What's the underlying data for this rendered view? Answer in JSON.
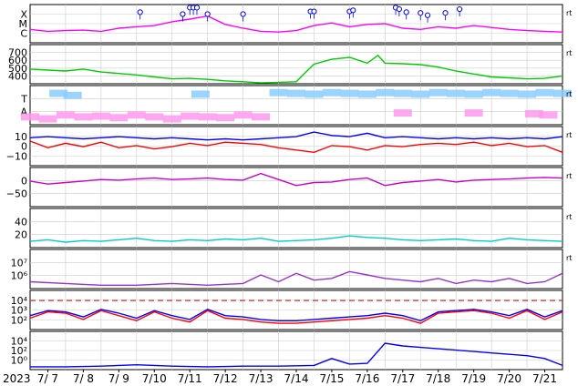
{
  "chart_data": [
    {
      "type": "line",
      "panel": "flare-class",
      "y_tick_labels": [
        "X",
        "M",
        "C"
      ],
      "series": [
        {
          "color": "#ff00ff",
          "x": [
            0,
            0.5,
            1,
            1.5,
            2,
            2.5,
            3,
            3.5,
            4,
            4.5,
            5,
            5.5,
            6,
            6.5,
            7,
            7.5,
            8,
            8.5,
            9,
            9.5,
            10,
            10.5,
            11,
            11.5,
            12,
            12.5,
            13,
            13.5,
            14,
            14.5,
            15
          ],
          "y": [
            0.35,
            0.3,
            0.32,
            0.33,
            0.3,
            0.38,
            0.42,
            0.45,
            0.55,
            0.62,
            0.7,
            0.48,
            0.38,
            0.3,
            0.28,
            0.32,
            0.45,
            0.52,
            0.42,
            0.48,
            0.5,
            0.38,
            0.35,
            0.42,
            0.38,
            0.45,
            0.4,
            0.35,
            0.32,
            0.3,
            0.28
          ]
        }
      ],
      "markers": {
        "color": "#0000ff",
        "x": [
          3.1,
          4.3,
          4.5,
          4.6,
          4.7,
          5.0,
          6.0,
          7.9,
          8.0,
          9.0,
          9.1,
          10.3,
          10.4,
          10.6,
          11.0,
          11.2,
          11.7,
          12.1
        ],
        "y": [
          0.8,
          0.75,
          0.92,
          0.92,
          0.92,
          0.75,
          0.75,
          0.82,
          0.82,
          0.82,
          0.85,
          0.92,
          0.88,
          0.8,
          0.78,
          0.72,
          0.78,
          0.88
        ]
      }
    },
    {
      "type": "line",
      "panel": "solar-wind-speed",
      "y_tick_labels": [
        "700",
        "600",
        "500",
        "400"
      ],
      "ylim": [
        350,
        750
      ],
      "series": [
        {
          "color": "#00cc00",
          "x": [
            0,
            0.5,
            1,
            1.5,
            2,
            2.5,
            3,
            3.5,
            4,
            4.5,
            5,
            5.5,
            6,
            6.5,
            7,
            7.5,
            7.8,
            8,
            8.5,
            9,
            9.5,
            9.8,
            10,
            10.5,
            11,
            11.5,
            12,
            12.5,
            13,
            13.5,
            14,
            14.5,
            15
          ],
          "y": [
            500,
            490,
            480,
            500,
            470,
            455,
            440,
            420,
            400,
            405,
            395,
            380,
            370,
            360,
            365,
            370,
            480,
            550,
            600,
            620,
            560,
            640,
            560,
            555,
            545,
            520,
            480,
            450,
            420,
            410,
            400,
            405,
            430
          ]
        }
      ]
    },
    {
      "type": "scatter",
      "panel": "imf-sector",
      "y_tick_labels": [
        "T",
        "A"
      ],
      "series": [
        {
          "color": "#ff99ee",
          "x": [
            0,
            0.5,
            1,
            1.5,
            2,
            2.5,
            3,
            3.5,
            4,
            4.5,
            5,
            5.5,
            6,
            6.5,
            10.5,
            12.5,
            14.2,
            14.6
          ],
          "y": [
            0.2,
            0.15,
            0.25,
            0.2,
            0.22,
            0.18,
            0.25,
            0.2,
            0.15,
            0.22,
            0.2,
            0.18,
            0.25,
            0.2,
            0.3,
            0.3,
            0.28,
            0.25
          ]
        },
        {
          "color": "#88ccff",
          "x": [
            0.8,
            1.2,
            4.8,
            7.0,
            7.5,
            8.0,
            8.5,
            9.0,
            9.5,
            10.0,
            10.5,
            11.0,
            11.5,
            12.0,
            12.5,
            13.0,
            13.5,
            14.0,
            14.5,
            15.0
          ],
          "y": [
            0.8,
            0.75,
            0.78,
            0.82,
            0.8,
            0.78,
            0.82,
            0.8,
            0.78,
            0.82,
            0.8,
            0.78,
            0.82,
            0.8,
            0.78,
            0.82,
            0.8,
            0.78,
            0.82,
            0.8
          ]
        }
      ]
    },
    {
      "type": "line",
      "panel": "imf-bz",
      "y_tick_labels": [
        "10",
        "0",
        "−10"
      ],
      "ylim": [
        -20,
        15
      ],
      "series": [
        {
          "color": "#0000ff",
          "x": [
            0,
            0.5,
            1,
            1.5,
            2,
            2.5,
            3,
            3.5,
            4,
            4.5,
            5,
            5.5,
            6,
            6.5,
            7,
            7.5,
            8,
            8.5,
            9,
            9.5,
            10,
            10.5,
            11,
            11.5,
            12,
            12.5,
            13,
            13.5,
            14,
            14.5,
            15
          ],
          "y": [
            5,
            6,
            5,
            4,
            5,
            6,
            5,
            4,
            5,
            4,
            3,
            4,
            3,
            4,
            5,
            6,
            10,
            7,
            6,
            9,
            5,
            6,
            5,
            4,
            5,
            4,
            5,
            4,
            5,
            4,
            6
          ]
        },
        {
          "color": "#ff0000",
          "x": [
            0,
            0.5,
            1,
            1.5,
            2,
            2.5,
            3,
            3.5,
            4,
            4.5,
            5,
            5.5,
            6,
            6.5,
            7,
            7.5,
            8,
            8.5,
            9,
            9.5,
            10,
            10.5,
            11,
            11.5,
            12,
            12.5,
            13,
            13.5,
            14,
            14.5,
            15
          ],
          "y": [
            2,
            -4,
            0,
            -3,
            1,
            -4,
            -2,
            -5,
            -3,
            0,
            -2,
            1,
            0,
            -1,
            -4,
            -6,
            -8,
            -2,
            -3,
            -6,
            -2,
            -3,
            -1,
            0,
            -1,
            1,
            -2,
            0,
            -3,
            -2,
            -8
          ]
        }
      ]
    },
    {
      "type": "line",
      "panel": "dst-index",
      "y_tick_labels": [
        "0",
        "−50"
      ],
      "ylim": [
        -100,
        30
      ],
      "series": [
        {
          "color": "#cc00cc",
          "x": [
            0,
            0.5,
            1,
            1.5,
            2,
            2.5,
            3,
            3.5,
            4,
            4.5,
            5,
            5.5,
            6,
            6.5,
            7,
            7.5,
            8,
            8.5,
            9,
            9.5,
            10,
            10.5,
            11,
            11.5,
            12,
            12.5,
            13,
            13.5,
            14,
            14.5,
            15
          ],
          "y": [
            -15,
            -25,
            -20,
            -15,
            -10,
            -12,
            -8,
            -5,
            -10,
            -8,
            -5,
            -10,
            -12,
            10,
            -10,
            -30,
            -20,
            -18,
            -10,
            -5,
            -30,
            -20,
            -15,
            -10,
            -18,
            -12,
            -10,
            -8,
            -5,
            -3,
            -5
          ]
        }
      ]
    },
    {
      "type": "line",
      "panel": "electron-flux-low",
      "y_tick_labels": [
        "40",
        "20"
      ],
      "ylim": [
        0,
        50
      ],
      "series": [
        {
          "color": "#00cccc",
          "x": [
            0,
            0.5,
            1,
            1.5,
            2,
            2.5,
            3,
            3.5,
            4,
            4.5,
            5,
            5.5,
            6,
            6.5,
            7,
            7.5,
            8,
            8.5,
            9,
            9.5,
            10,
            10.5,
            11,
            11.5,
            12,
            12.5,
            13,
            13.5,
            14,
            14.5,
            15
          ],
          "y": [
            8,
            10,
            7,
            9,
            8,
            10,
            12,
            9,
            8,
            10,
            9,
            11,
            10,
            12,
            8,
            9,
            10,
            12,
            15,
            13,
            12,
            10,
            9,
            10,
            11,
            9,
            8,
            12,
            10,
            9,
            8
          ]
        }
      ]
    },
    {
      "type": "line",
      "panel": "proton-flux",
      "y_tick_labels": [
        "10⁷",
        "10⁶"
      ],
      "ylim": [
        5,
        7.3
      ],
      "series": [
        {
          "color": "#9933cc",
          "x": [
            0,
            1,
            2,
            3,
            4,
            5,
            6,
            6.5,
            7,
            7.5,
            8,
            8.5,
            9,
            9.5,
            10,
            10.5,
            11,
            11.5,
            12,
            12.5,
            13,
            13.5,
            14,
            14.5,
            15
          ],
          "y": [
            5.4,
            5.3,
            5.2,
            5.2,
            5.3,
            5.2,
            5.3,
            5.8,
            5.4,
            5.9,
            5.5,
            5.6,
            6.0,
            5.8,
            5.6,
            5.5,
            5.4,
            5.6,
            5.3,
            5.5,
            5.4,
            5.6,
            5.3,
            5.4,
            5.9
          ]
        }
      ]
    },
    {
      "type": "line",
      "panel": "xray-flux",
      "y_tick_labels": [
        "10⁴",
        "10³",
        "10²"
      ],
      "ylim": [
        1.5,
        4.6
      ],
      "series": [
        {
          "color": "#0000ff",
          "x": [
            0,
            0.5,
            1,
            1.5,
            2,
            2.5,
            3,
            3.5,
            4,
            4.5,
            5,
            5.5,
            6,
            6.5,
            7,
            7.5,
            8,
            8.5,
            9,
            9.5,
            10,
            10.5,
            11,
            11.5,
            12,
            12.5,
            13,
            13.5,
            14,
            14.5,
            15
          ],
          "y": [
            2.6,
            3.0,
            2.9,
            2.5,
            3.1,
            2.8,
            2.4,
            3.0,
            2.6,
            2.3,
            3.1,
            2.6,
            2.5,
            2.3,
            2.2,
            2.2,
            2.3,
            2.4,
            2.5,
            2.6,
            2.8,
            2.6,
            2.2,
            2.9,
            3.0,
            3.1,
            2.9,
            2.6,
            3.1,
            2.5,
            3.0
          ]
        },
        {
          "color": "#ff0000",
          "x": [
            0,
            0.5,
            1,
            1.5,
            2,
            2.5,
            3,
            3.5,
            4,
            4.5,
            5,
            5.5,
            6,
            6.5,
            7,
            7.5,
            8,
            8.5,
            9,
            9.5,
            10,
            10.5,
            11,
            11.5,
            12,
            12.5,
            13,
            13.5,
            14,
            14.5,
            15
          ],
          "y": [
            2.4,
            2.9,
            2.8,
            2.3,
            3.0,
            2.6,
            2.2,
            2.9,
            2.4,
            2.1,
            3.0,
            2.4,
            2.3,
            2.1,
            2.0,
            2.0,
            2.1,
            2.2,
            2.3,
            2.4,
            2.6,
            2.4,
            2.0,
            2.8,
            2.9,
            3.0,
            2.8,
            2.4,
            3.0,
            2.3,
            2.9
          ]
        }
      ],
      "threshold": {
        "value": 3.8,
        "color": "#dd3333",
        "style": "dashed"
      }
    },
    {
      "type": "line",
      "panel": "high-energy-flux",
      "y_tick_labels": [
        "10⁴",
        "10²",
        "10⁰"
      ],
      "ylim": [
        -1,
        4.5
      ],
      "series": [
        {
          "color": "#0000ff",
          "x": [
            0,
            1,
            2,
            3,
            4,
            5,
            6,
            7,
            8,
            8.5,
            9,
            9.5,
            10,
            10.5,
            11,
            11.5,
            12,
            12.5,
            13,
            13.5,
            14,
            14.5,
            15
          ],
          "y": [
            -0.6,
            -0.6,
            -0.5,
            -0.3,
            -0.5,
            -0.6,
            -0.5,
            -0.5,
            -0.4,
            0.6,
            -0.2,
            -0.1,
            2.8,
            2.4,
            2.2,
            2.0,
            1.8,
            1.6,
            1.4,
            1.2,
            1.0,
            0.6,
            -0.4
          ]
        }
      ]
    }
  ],
  "x_axis": {
    "year_label": "2023",
    "ticks": [
      "7/ 7",
      "7/ 8",
      "7/ 9",
      "7/10",
      "7/11",
      "7/12",
      "7/13",
      "7/14",
      "7/15",
      "7/16",
      "7/17",
      "7/18",
      "7/19",
      "7/20",
      "7/21"
    ]
  },
  "right_markers": [
    "rt",
    "rt",
    "rt",
    "rt",
    "rt",
    "rt",
    "rt"
  ]
}
